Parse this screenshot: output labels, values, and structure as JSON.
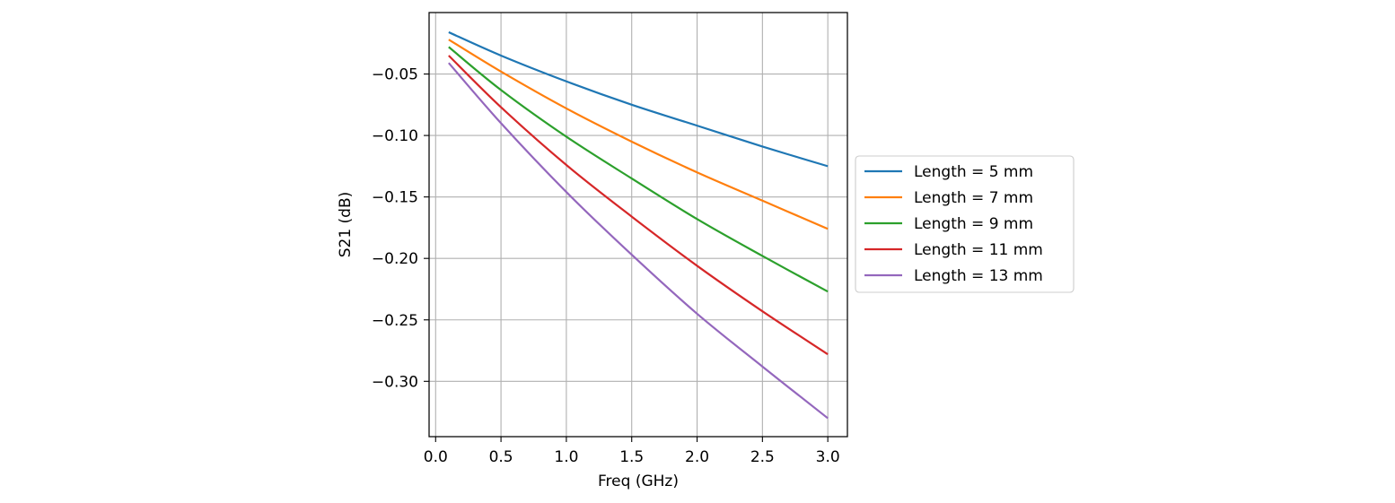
{
  "chart_data": {
    "type": "line",
    "title": "",
    "xlabel": "Freq (GHz)",
    "ylabel": "S21 (dB)",
    "xlim": [
      -0.05,
      3.15
    ],
    "ylim": [
      -0.345,
      -0.0
    ],
    "xticks": [
      0.0,
      0.5,
      1.0,
      1.5,
      2.0,
      2.5,
      3.0
    ],
    "xtick_labels": [
      "0.0",
      "0.5",
      "1.0",
      "1.5",
      "2.0",
      "2.5",
      "3.0"
    ],
    "yticks": [
      -0.05,
      -0.1,
      -0.15,
      -0.2,
      -0.25,
      -0.3
    ],
    "ytick_labels": [
      "−0.05",
      "−0.10",
      "−0.15",
      "−0.20",
      "−0.25",
      "−0.30"
    ],
    "grid": true,
    "legend_position": "center-right, outside plot",
    "x": [
      0.1,
      0.5,
      1.0,
      1.5,
      2.0,
      2.5,
      3.0
    ],
    "series": [
      {
        "name": "Length = 5 mm",
        "color": "#1f77b4",
        "values": [
          -0.016,
          -0.035,
          -0.056,
          -0.075,
          -0.092,
          -0.109,
          -0.125
        ]
      },
      {
        "name": "Length = 7 mm",
        "color": "#ff7f0e",
        "values": [
          -0.022,
          -0.048,
          -0.078,
          -0.105,
          -0.13,
          -0.153,
          -0.176
        ]
      },
      {
        "name": "Length = 9 mm",
        "color": "#2ca02c",
        "values": [
          -0.028,
          -0.063,
          -0.101,
          -0.135,
          -0.168,
          -0.198,
          -0.227
        ]
      },
      {
        "name": "Length = 11 mm",
        "color": "#d62728",
        "values": [
          -0.035,
          -0.077,
          -0.124,
          -0.166,
          -0.206,
          -0.243,
          -0.278
        ]
      },
      {
        "name": "Length = 13 mm",
        "color": "#9467bd",
        "values": [
          -0.041,
          -0.09,
          -0.146,
          -0.197,
          -0.245,
          -0.288,
          -0.33
        ]
      }
    ]
  }
}
